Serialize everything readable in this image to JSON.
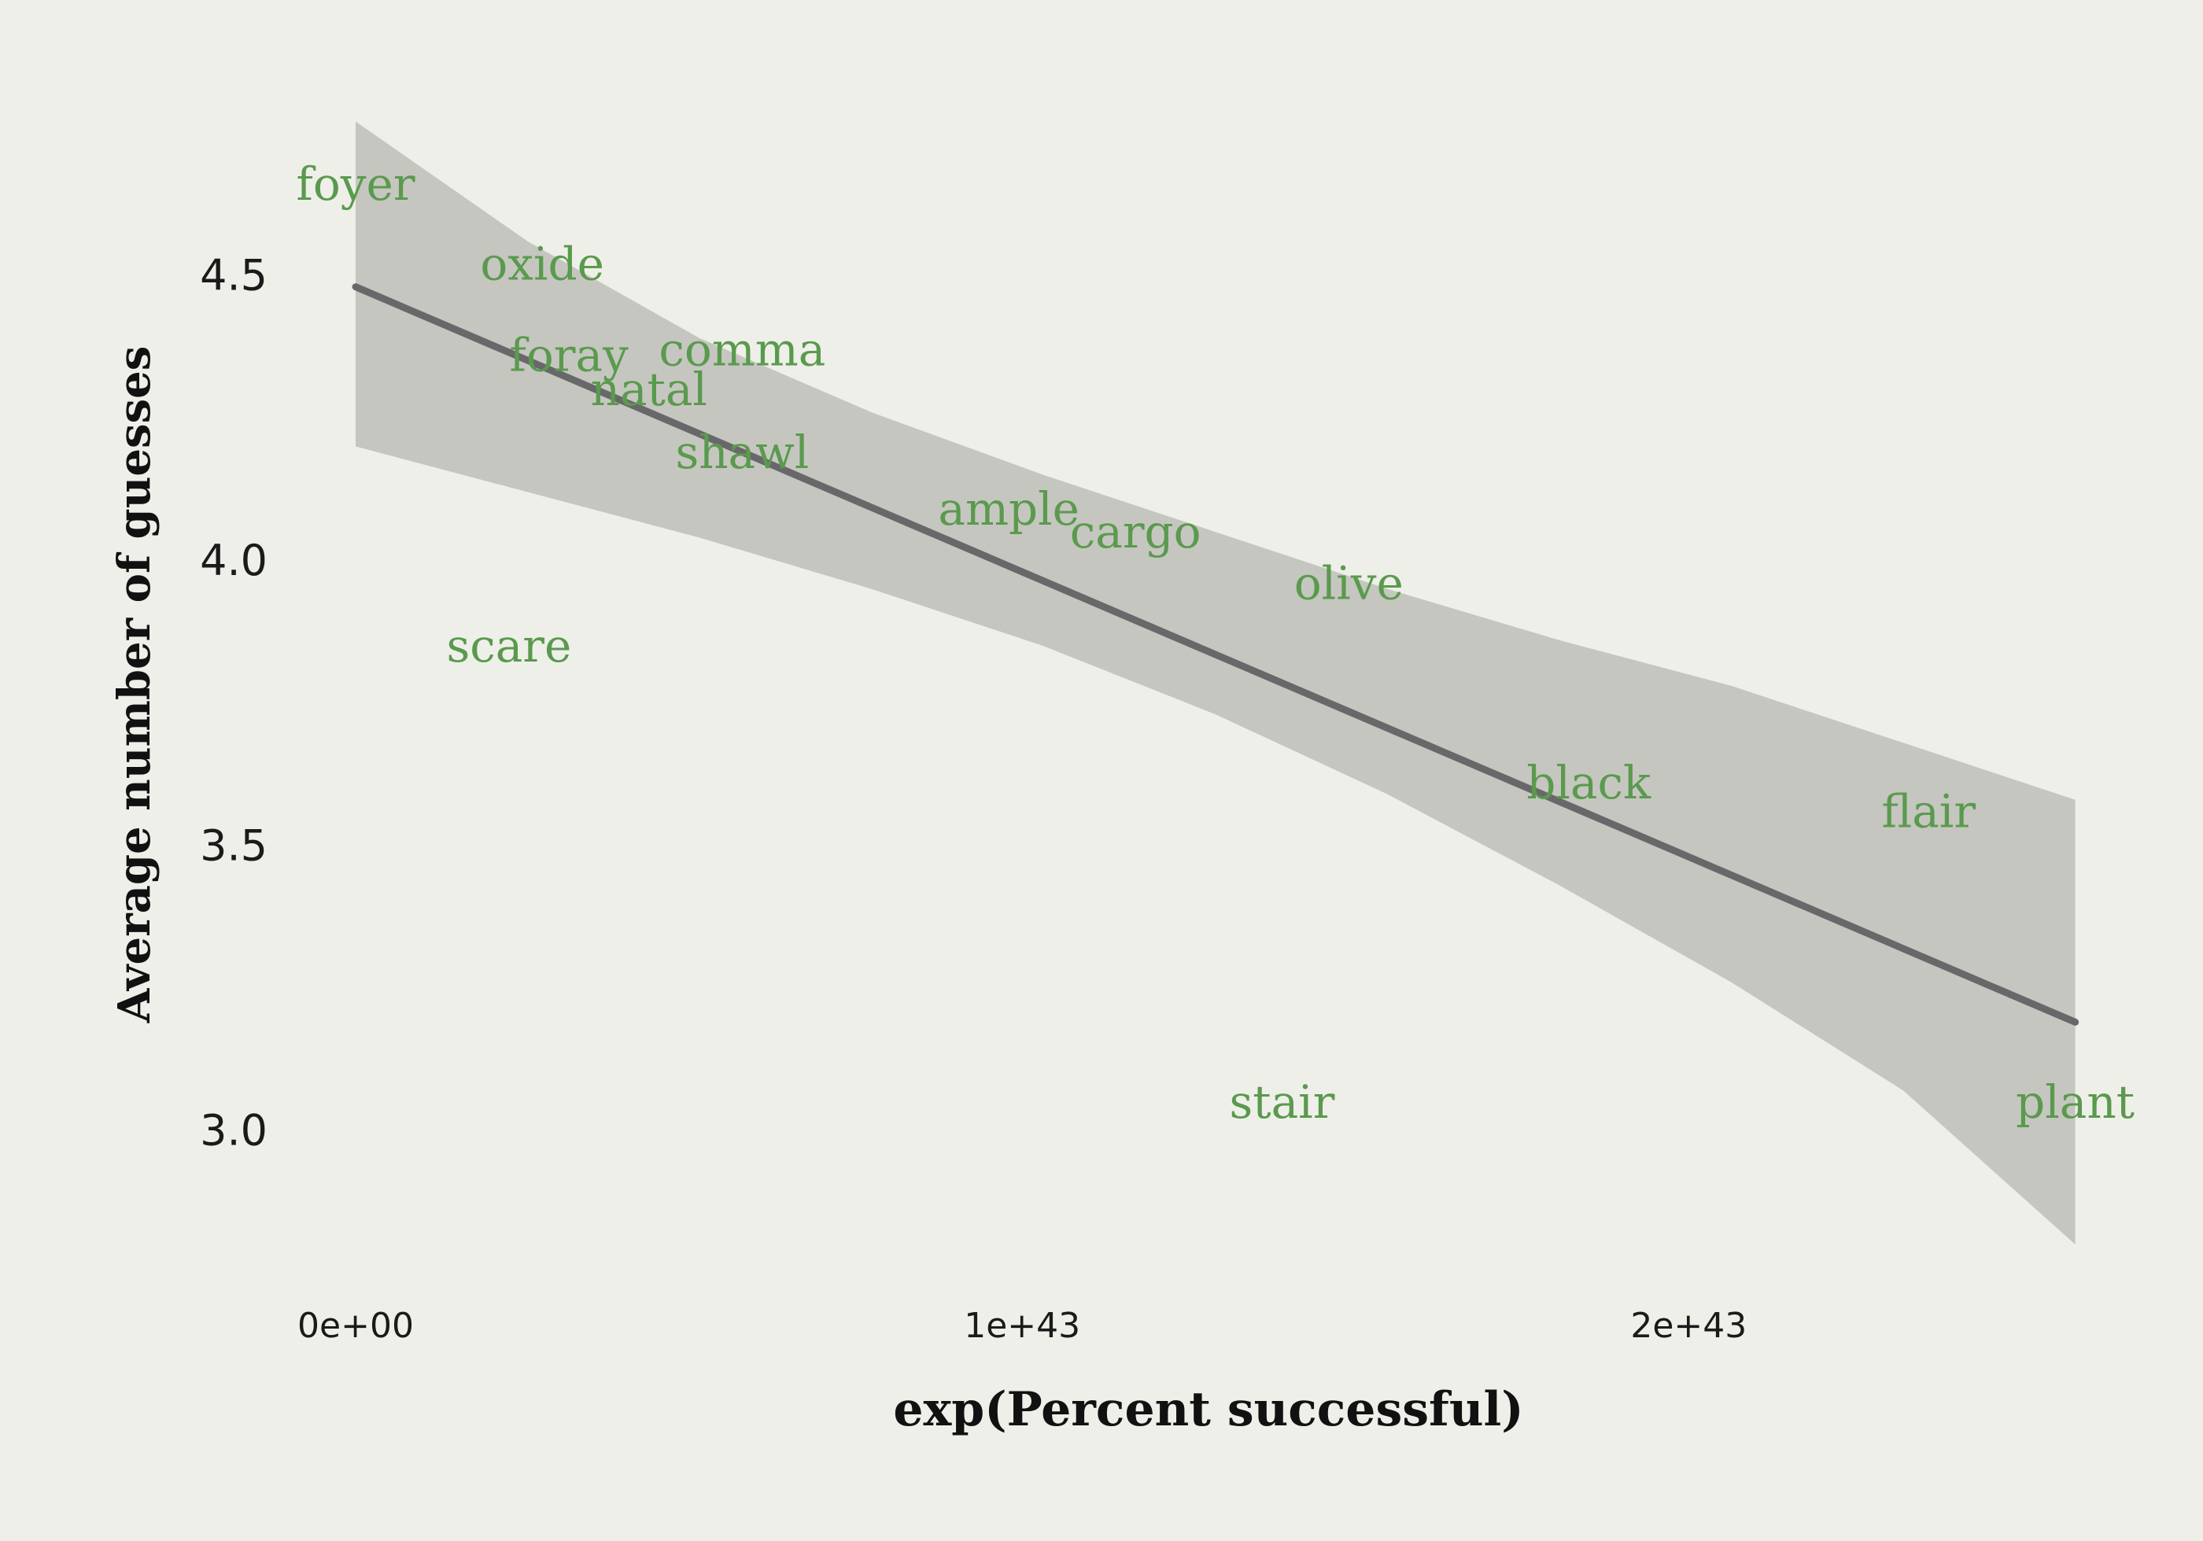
{
  "chart_data": {
    "type": "scatter",
    "xlabel": "exp(Percent successful)",
    "ylabel": "Average number of guesses",
    "xlim": [
      -8.5e+41,
      2.63e+43
    ],
    "ylim": [
      2.72,
      4.79
    ],
    "x_ticks": [
      {
        "value": 0,
        "label": "0e+00"
      },
      {
        "value": 1e+43,
        "label": "1e+43"
      },
      {
        "value": 2e+43,
        "label": "2e+43"
      }
    ],
    "y_ticks": [
      {
        "value": 3.0,
        "label": "3.0"
      },
      {
        "value": 3.5,
        "label": "3.5"
      },
      {
        "value": 4.0,
        "label": "4.0"
      },
      {
        "value": 4.5,
        "label": "4.5"
      }
    ],
    "points": [
      {
        "label": "foyer",
        "x": 0.0,
        "y": 4.66
      },
      {
        "label": "oxide",
        "x": 2.8e+42,
        "y": 4.52
      },
      {
        "label": "foray",
        "x": 3.2e+42,
        "y": 4.36
      },
      {
        "label": "comma",
        "x": 5.8e+42,
        "y": 4.37
      },
      {
        "label": "natal",
        "x": 4.4e+42,
        "y": 4.3
      },
      {
        "label": "shawl",
        "x": 5.8e+42,
        "y": 4.19
      },
      {
        "label": "scare",
        "x": 2.3e+42,
        "y": 3.85
      },
      {
        "label": "ample",
        "x": 9.8e+42,
        "y": 4.09
      },
      {
        "label": "cargo",
        "x": 1.17e+43,
        "y": 4.05
      },
      {
        "label": "olive",
        "x": 1.49e+43,
        "y": 3.96
      },
      {
        "label": "black",
        "x": 1.85e+43,
        "y": 3.61
      },
      {
        "label": "flair",
        "x": 2.36e+43,
        "y": 3.56
      },
      {
        "label": "stair",
        "x": 1.39e+43,
        "y": 3.05
      },
      {
        "label": "plant",
        "x": 2.58e+43,
        "y": 3.05
      }
    ],
    "trend": {
      "x": [
        0.0,
        2.58e+43
      ],
      "y": [
        4.48,
        3.19
      ]
    },
    "confidence_band": {
      "x": [
        0.0,
        2.58e+42,
        5.16e+42,
        7.74e+42,
        1.032e+43,
        1.29e+43,
        1.548e+43,
        1.806e+43,
        2.064e+43,
        2.322e+43,
        2.58e+43
      ],
      "upper": [
        4.77,
        4.56,
        4.39,
        4.26,
        4.15,
        4.05,
        3.95,
        3.86,
        3.78,
        3.68,
        3.58
      ],
      "lower": [
        4.2,
        4.12,
        4.04,
        3.95,
        3.85,
        3.73,
        3.59,
        3.43,
        3.26,
        3.07,
        2.8
      ]
    },
    "grid": false,
    "legend": "none",
    "colors": {
      "background": "#efefe9",
      "band": "#c6c6c0",
      "trend_line": "#68686a",
      "point_label": "#5a9a4e"
    }
  }
}
